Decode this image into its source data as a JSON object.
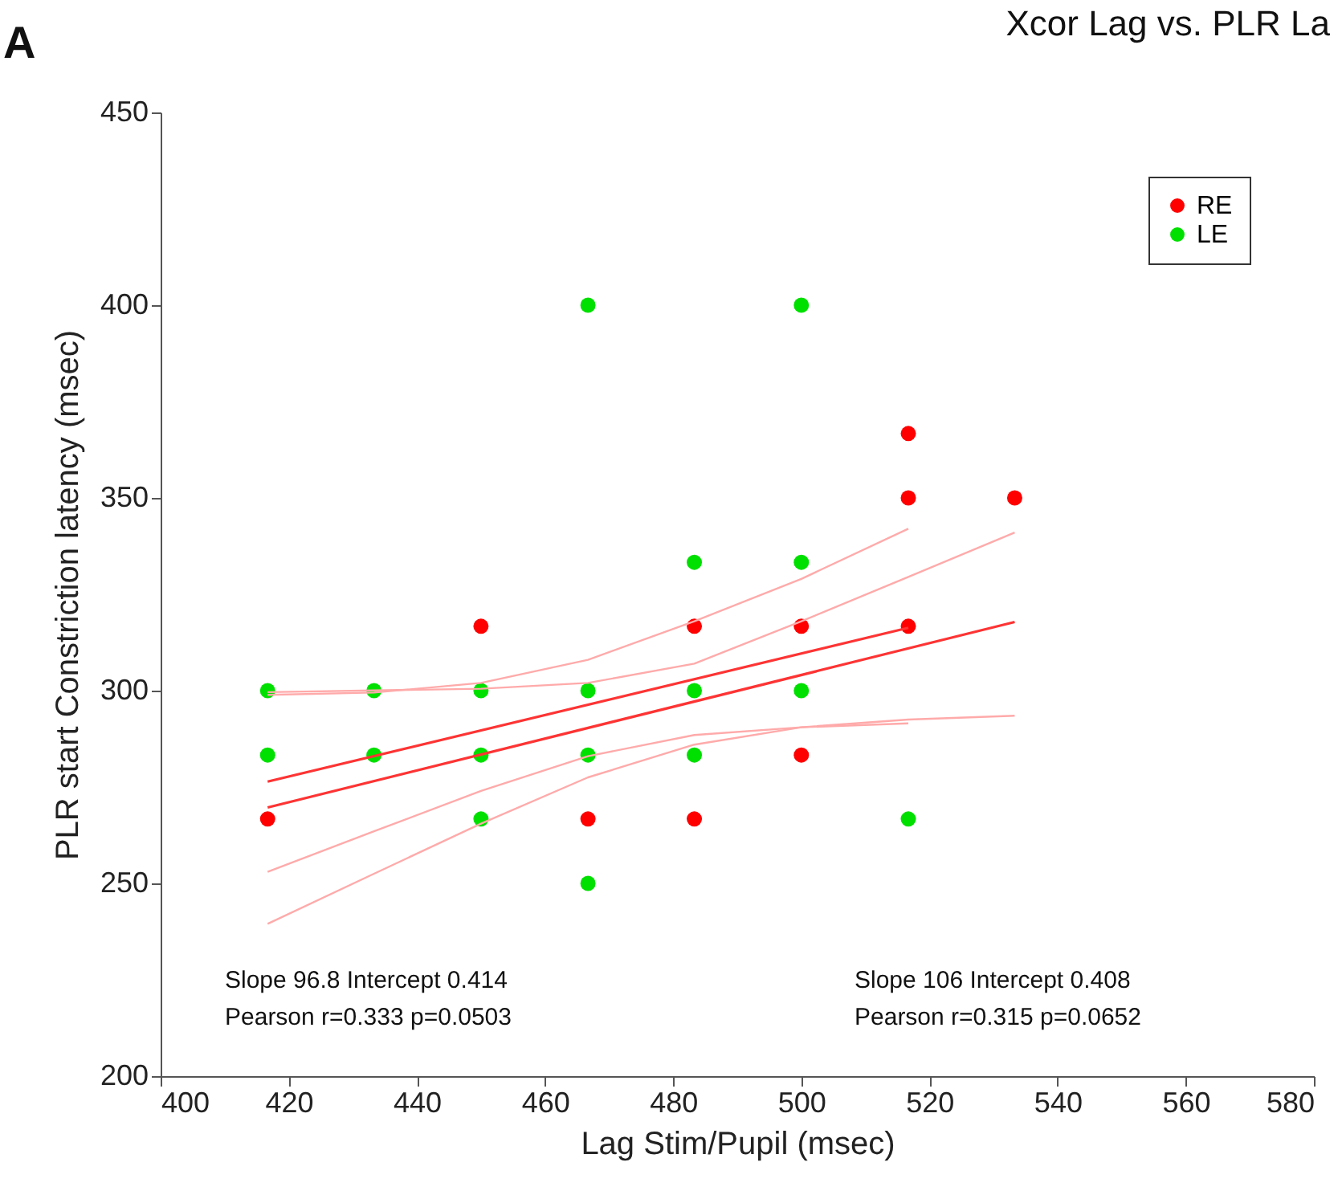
{
  "chart_data": {
    "type": "scatter",
    "title": "Xcor Lag vs. PLR La",
    "xlabel": "Lag Stim/Pupil (msec)",
    "ylabel": "PLR start Constriction latency (msec)",
    "xlim": [
      400,
      580
    ],
    "xticks": [
      400,
      420,
      440,
      460,
      480,
      500,
      520,
      540,
      560,
      580
    ],
    "ylim": [
      200,
      450
    ],
    "yticks": [
      200,
      250,
      300,
      350,
      400,
      450
    ],
    "grid": false,
    "legend": "top right",
    "marker": "circle",
    "annotations": [
      "A",
      "Slope 96.8 Intercept 0.414",
      "Pearson r=0.333  p=0.0503",
      "Slope 106 Intercept 0.408",
      "Pearson r=0.315  p=0.0652"
    ],
    "series": [
      {
        "name": "RE",
        "type": "scatter",
        "color": "#ff0000",
        "x": [
          416.7,
          450,
          466.7,
          483.3,
          483.3,
          500,
          500,
          516.7,
          516.7,
          516.7,
          533.3
        ],
        "values": [
          266.7,
          316.7,
          266.7,
          316.7,
          266.7,
          316.7,
          283.3,
          366.7,
          350,
          316.7,
          350
        ]
      },
      {
        "name": "LE",
        "type": "scatter",
        "color": "#00e000",
        "x": [
          416.7,
          416.7,
          433.3,
          433.3,
          450,
          450,
          450,
          466.7,
          466.7,
          466.7,
          466.7,
          483.3,
          483.3,
          483.3,
          500,
          500,
          500,
          516.7
        ],
        "values": [
          300,
          283.3,
          300,
          283.3,
          300,
          283.3,
          266.7,
          400,
          300,
          283.3,
          250,
          333.3,
          300,
          283.3,
          400,
          333.3,
          300,
          266.7
        ]
      },
      {
        "type": "line",
        "marker": "none",
        "line_style": "solid",
        "color": "#ff3333",
        "x": [
          416.7,
          516.7
        ],
        "values": [
          276.4,
          316.3
        ]
      },
      {
        "type": "line",
        "marker": "none",
        "line_style": "solid",
        "color": "#ff3333",
        "x": [
          416.7,
          533.3
        ],
        "values": [
          269.7,
          317.8
        ]
      },
      {
        "type": "line",
        "marker": "none",
        "line_style": "solid",
        "color": "#ffaaaa",
        "x": [
          416.7,
          433.3,
          450,
          466.7,
          483.3,
          500,
          516.7
        ],
        "values": [
          298.9,
          299.5,
          302,
          308,
          318,
          329,
          342
        ]
      },
      {
        "type": "line",
        "marker": "none",
        "line_style": "solid",
        "color": "#ffaaaa",
        "x": [
          416.7,
          433.3,
          450,
          466.7,
          483.3,
          500,
          516.7
        ],
        "values": [
          253,
          263.5,
          274,
          283,
          288.5,
          290.5,
          291.5
        ]
      },
      {
        "type": "line",
        "marker": "none",
        "line_style": "solid",
        "color": "#ffaaaa",
        "x": [
          416.7,
          450,
          466.7,
          483.3,
          500,
          516.7,
          533.3
        ],
        "values": [
          299.6,
          300.5,
          302,
          307,
          318,
          329.5,
          341
        ]
      },
      {
        "type": "line",
        "marker": "none",
        "line_style": "solid",
        "color": "#ffaaaa",
        "x": [
          416.7,
          433.3,
          450,
          466.7,
          483.3,
          500,
          516.7,
          533.3
        ],
        "values": [
          239.5,
          252.5,
          265.5,
          277.5,
          286,
          290.5,
          292.5,
          293.5
        ]
      }
    ]
  }
}
